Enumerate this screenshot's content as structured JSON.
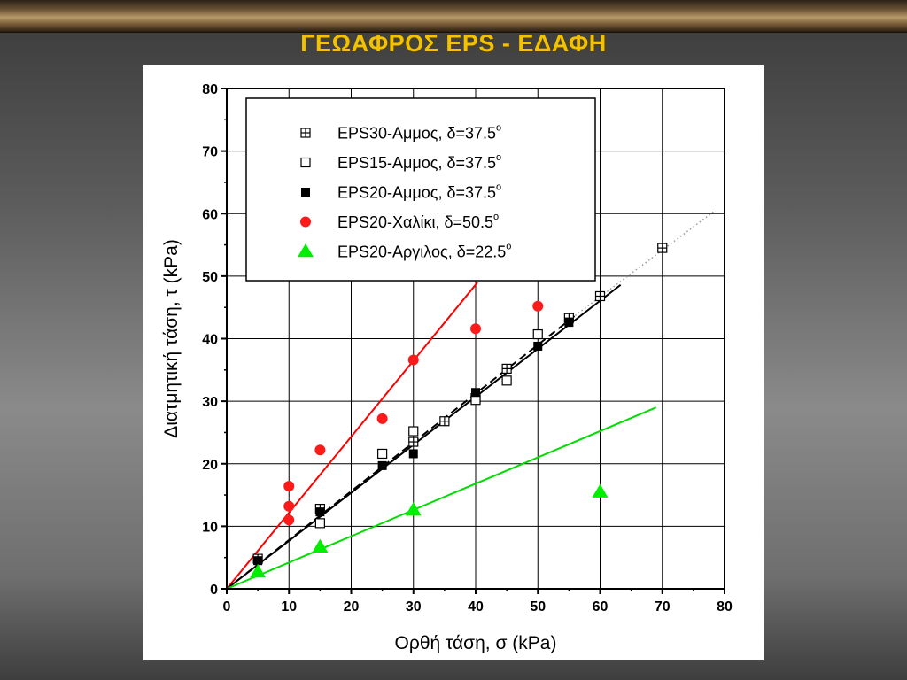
{
  "slide": {
    "title": "ΓΕΩΑΦΡΟΣ  EPS - ΕΔΑΦΗ"
  },
  "chart_data": {
    "type": "scatter",
    "xlabel": "Ορθή τάση, σ (kPa)",
    "ylabel": "Διατμητική τάση, τ (kPa)",
    "xlim": [
      0,
      80
    ],
    "ylim": [
      0,
      80
    ],
    "xticks": [
      0,
      10,
      20,
      30,
      40,
      50,
      60,
      70,
      80
    ],
    "yticks": [
      0,
      10,
      20,
      30,
      40,
      50,
      60,
      70,
      80
    ],
    "grid": true,
    "legend_position": "top-left",
    "series": [
      {
        "name": "EPS30-Αμμος, δ=37.5",
        "name_sup": "o",
        "marker": "square-crossed",
        "color": "#000000",
        "points": [
          [
            5,
            4.8
          ],
          [
            15,
            12.8
          ],
          [
            30,
            23.5
          ],
          [
            35,
            26.8
          ],
          [
            40,
            30.5
          ],
          [
            45,
            35.2
          ],
          [
            55,
            43.3
          ],
          [
            60,
            46.8
          ],
          [
            70,
            54.5
          ]
        ]
      },
      {
        "name": "EPS15-Αμμος, δ=37.5",
        "name_sup": "o",
        "marker": "square-open",
        "color": "#000000",
        "points": [
          [
            15,
            10.5
          ],
          [
            25,
            21.6
          ],
          [
            30,
            25.2
          ],
          [
            40,
            30.2
          ],
          [
            45,
            33.3
          ],
          [
            50,
            40.7
          ]
        ]
      },
      {
        "name": "EPS20-Αμμος, δ=37.5",
        "name_sup": "o",
        "marker": "square-filled",
        "color": "#000000",
        "points": [
          [
            5,
            4.5
          ],
          [
            15,
            12.3
          ],
          [
            25,
            19.7
          ],
          [
            30,
            21.6
          ],
          [
            40,
            31.4
          ],
          [
            50,
            38.8
          ],
          [
            55,
            42.6
          ]
        ]
      },
      {
        "name": "EPS20-Χαλίκι, δ=50.5",
        "name_sup": "o",
        "marker": "circle-filled",
        "color": "#ff1a1a",
        "points": [
          [
            10,
            16.4
          ],
          [
            10,
            13.2
          ],
          [
            10,
            11.0
          ],
          [
            15,
            22.2
          ],
          [
            25,
            27.2
          ],
          [
            30,
            36.6
          ],
          [
            40,
            41.6
          ],
          [
            50,
            45.2
          ]
        ]
      },
      {
        "name": "EPS20-Αργιλος, δ=22.5",
        "name_sup": "o",
        "marker": "triangle-filled",
        "color": "#00ee00",
        "points": [
          [
            5,
            2.7
          ],
          [
            15,
            6.7
          ],
          [
            30,
            12.6
          ],
          [
            60,
            15.5
          ]
        ]
      }
    ],
    "fit_lines": [
      {
        "color": "#ff0000",
        "style": "solid",
        "from": [
          0,
          0
        ],
        "to": [
          40.3,
          49.0
        ]
      },
      {
        "color": "#000000",
        "style": "solid",
        "from": [
          0,
          0
        ],
        "to": [
          63.3,
          48.6
        ]
      },
      {
        "color": "#000000",
        "style": "dashed",
        "from": [
          0,
          0
        ],
        "to": [
          56,
          43.7
        ]
      },
      {
        "color": "#9a9a9a",
        "style": "dotted",
        "from": [
          56,
          43.7
        ],
        "to": [
          78.5,
          60.5
        ]
      },
      {
        "color": "#00dd00",
        "style": "solid",
        "from": [
          0,
          0
        ],
        "to": [
          69,
          29.0
        ]
      }
    ]
  }
}
